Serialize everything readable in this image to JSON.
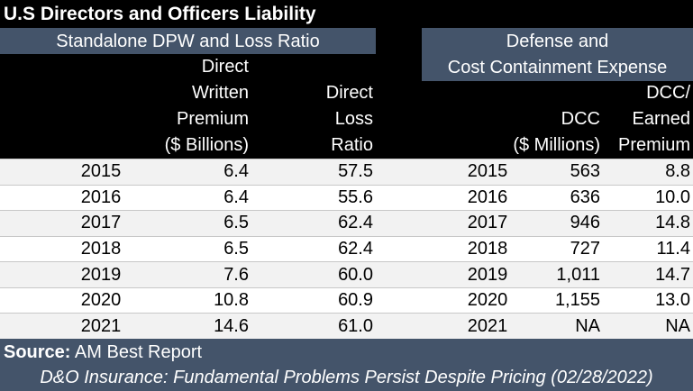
{
  "title": "U.S Directors and Officers Liability",
  "left_group": "Standalone DPW and Loss Ratio",
  "right_group": [
    "Defense and",
    "Cost Containment Expense"
  ],
  "headers": {
    "dpw": [
      "Direct",
      "Written",
      "Premium",
      "($ Billions)"
    ],
    "loss_ratio": [
      "Direct",
      "Loss",
      "Ratio"
    ],
    "dcc": [
      "DCC",
      "($ Millions)"
    ],
    "dcc_ratio": [
      "DCC/",
      "Earned",
      "Premium"
    ]
  },
  "rows": [
    [
      "2015",
      "6.4",
      "57.5",
      "2015",
      "563",
      "8.8"
    ],
    [
      "2016",
      "6.4",
      "55.6",
      "2016",
      "636",
      "10.0"
    ],
    [
      "2017",
      "6.5",
      "62.4",
      "2017",
      "946",
      "14.8"
    ],
    [
      "2018",
      "6.5",
      "62.4",
      "2018",
      "727",
      "11.4"
    ],
    [
      "2019",
      "7.6",
      "60.0",
      "2019",
      "1,011",
      "14.7"
    ],
    [
      "2020",
      "10.8",
      "60.9",
      "2020",
      "1,155",
      "13.0"
    ],
    [
      "2021",
      "14.6",
      "61.0",
      "2021",
      "NA",
      "NA"
    ]
  ],
  "footer": {
    "source_label": "Source:",
    "source_text": "AM Best Report",
    "note": "D&O Insurance: Fundamental Problems Persist Despite Pricing (02/28/2022)"
  }
}
